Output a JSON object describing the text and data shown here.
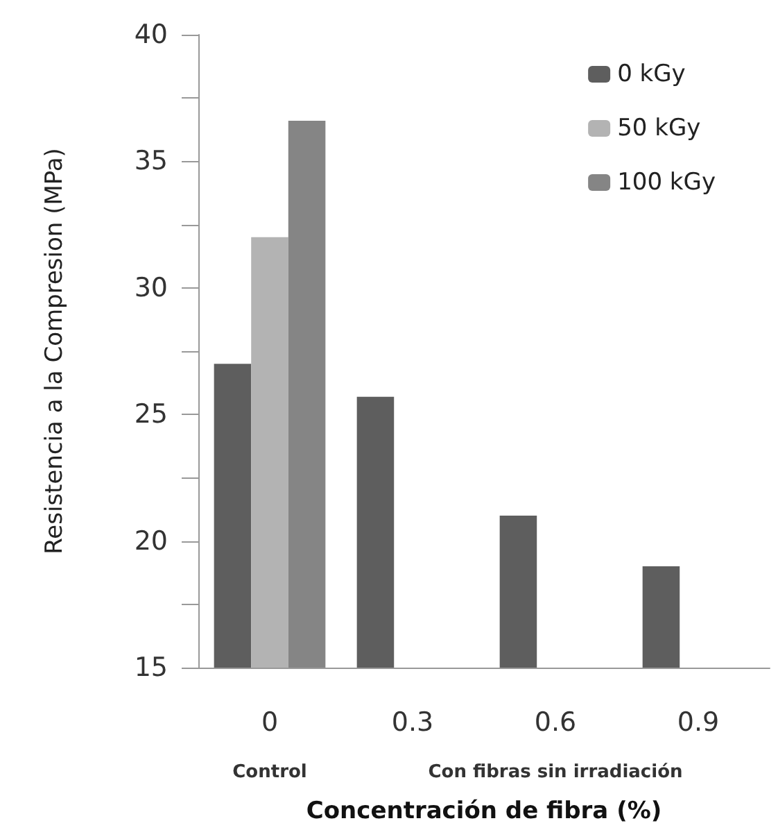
{
  "chart_data": {
    "type": "bar",
    "xlabel": "Concentración de fibra (%)",
    "ylabel": "Resistencia a la Compresion (MPa)",
    "categories": [
      "0",
      "0.3",
      "0.6",
      "0.9"
    ],
    "series": [
      {
        "name": "0 kGy",
        "color": "#5e5e5e",
        "values": [
          27.0,
          25.7,
          21.0,
          19.0
        ]
      },
      {
        "name": "50 kGy",
        "color": "#b3b3b3",
        "values": [
          32.0,
          null,
          null,
          null
        ]
      },
      {
        "name": "100 kGy",
        "color": "#858585",
        "values": [
          36.6,
          null,
          null,
          null
        ]
      }
    ],
    "ylim": [
      15,
      40
    ],
    "yticks": [
      15,
      {
        "value": 17.5,
        "label": null
      },
      20,
      {
        "value": 22.5,
        "label": null
      },
      25,
      {
        "value": 27.5,
        "label": null
      },
      30,
      {
        "value": 32.5,
        "label": null
      },
      35,
      {
        "value": 37.5,
        "label": null
      },
      40
    ],
    "annotations": [
      "Control",
      "Con fibras sin irradiación"
    ],
    "grid": false,
    "legend": "top right"
  }
}
